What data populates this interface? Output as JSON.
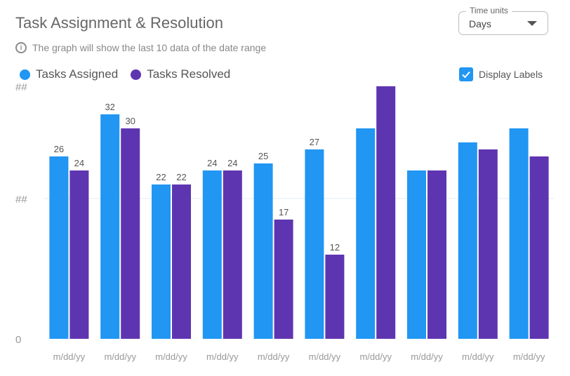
{
  "header": {
    "title": "Task Assignment & Resolution",
    "info_text": "The graph will show the last 10 data of the date range",
    "info_icon": "info-icon"
  },
  "legend": [
    {
      "label": "Tasks Assigned",
      "color": "#2196f3"
    },
    {
      "label": "Tasks Resolved",
      "color": "#5e35b1"
    }
  ],
  "time_units": {
    "label": "Time units",
    "value": "Days"
  },
  "display_labels": {
    "label": "Display Labels",
    "checked": true
  },
  "axis": {
    "y_ticks": [
      "0",
      "##",
      "##"
    ]
  },
  "chart_data": {
    "type": "bar",
    "categories": [
      "m/dd/yy",
      "m/dd/yy",
      "m/dd/yy",
      "m/dd/yy",
      "m/dd/yy",
      "m/dd/yy",
      "m/dd/yy",
      "m/dd/yy",
      "m/dd/yy",
      "m/dd/yy"
    ],
    "series": [
      {
        "name": "Tasks Assigned",
        "color": "#2196f3",
        "values": [
          26,
          32,
          22,
          24,
          25,
          27,
          30,
          24,
          28,
          30
        ]
      },
      {
        "name": "Tasks Resolved",
        "color": "#5e35b1",
        "values": [
          24,
          30,
          22,
          24,
          17,
          12,
          36,
          24,
          27,
          26
        ]
      }
    ],
    "data_labels": [
      [
        "26",
        "32",
        "22",
        "24",
        "25",
        "27",
        null,
        null,
        null,
        null
      ],
      [
        "24",
        "30",
        "22",
        "24",
        "17",
        "12",
        null,
        null,
        null,
        null
      ]
    ],
    "ylim": [
      0,
      40
    ],
    "grid": true,
    "legend_position": "top-left"
  }
}
